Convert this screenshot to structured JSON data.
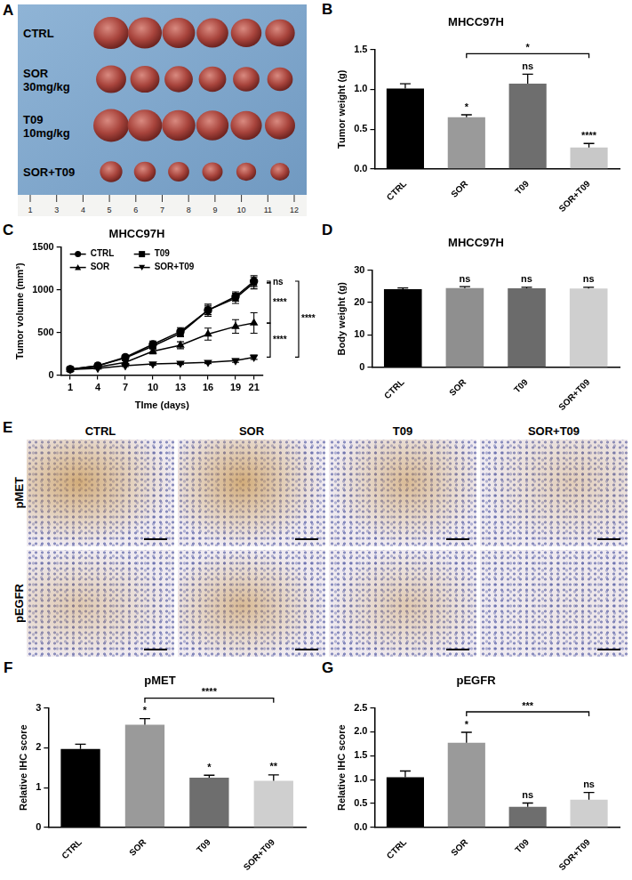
{
  "chart_data": [
    {
      "panel": "B",
      "type": "bar",
      "title": "MHCC97H",
      "ylabel": "Tumor weight (g)",
      "categories": [
        "CTRL",
        "SOR",
        "T09",
        "SOR+T09"
      ],
      "values": [
        1.01,
        0.65,
        1.07,
        0.27
      ],
      "errors": [
        0.06,
        0.03,
        0.12,
        0.05
      ],
      "colors": [
        "#000000",
        "#9a9a9a",
        "#6e6e6e",
        "#c8c8c8"
      ],
      "ylim": [
        0,
        1.5
      ],
      "yticks": [
        {
          "value": 0,
          "label": "0.0"
        },
        {
          "value": 0.5,
          "label": "0.5"
        },
        {
          "value": 1,
          "label": "1.0"
        },
        {
          "value": 1.5,
          "label": "1.5"
        }
      ],
      "grid": false,
      "annotations": [
        {
          "category": "SOR",
          "text": "*"
        },
        {
          "category": "T09",
          "text": "ns"
        },
        {
          "category": "SOR+T09",
          "text": "****"
        }
      ],
      "brackets": [
        {
          "from": "SOR",
          "to": "SOR+T09",
          "text": "*"
        }
      ]
    },
    {
      "panel": "C",
      "type": "line",
      "title": "MHCC97H",
      "xlabel": "TIme (days)",
      "ylabel": "Tumor volume (mm³)",
      "x": [
        1,
        4,
        7,
        10,
        13,
        16,
        19,
        21
      ],
      "xlim": [
        0,
        22
      ],
      "xticks": [
        1,
        4,
        7,
        10,
        13,
        16,
        19,
        21
      ],
      "ylim": [
        0,
        1500
      ],
      "yticks": [
        0,
        500,
        1000,
        1500
      ],
      "grid": false,
      "legend": "upper left",
      "series": [
        {
          "name": "CTRL",
          "color": "#000000",
          "marker": "circle",
          "values": [
            70,
            110,
            210,
            360,
            510,
            760,
            920,
            1100
          ],
          "errors": [
            5,
            8,
            15,
            40,
            45,
            70,
            55,
            65
          ]
        },
        {
          "name": "T09",
          "color": "#000000",
          "marker": "square",
          "values": [
            70,
            110,
            200,
            340,
            490,
            760,
            900,
            1080
          ],
          "errors": [
            5,
            8,
            15,
            30,
            40,
            50,
            60,
            70
          ]
        },
        {
          "name": "SOR",
          "color": "#000000",
          "marker": "triangle",
          "values": [
            65,
            95,
            150,
            280,
            350,
            480,
            570,
            610
          ],
          "errors": [
            5,
            8,
            20,
            30,
            40,
            70,
            80,
            120
          ]
        },
        {
          "name": "SOR+T09",
          "color": "#000000",
          "marker": "triangle-down",
          "values": [
            65,
            80,
            110,
            130,
            140,
            150,
            170,
            210
          ],
          "errors": [
            5,
            5,
            10,
            15,
            15,
            15,
            20,
            25
          ]
        }
      ],
      "brackets": [
        {
          "from": "CTRL",
          "to": "T09",
          "text": "ns"
        },
        {
          "from": "T09",
          "to": "SOR",
          "text": "****"
        },
        {
          "from": "SOR",
          "to": "SOR+T09",
          "text": "****"
        },
        {
          "from": "CTRL",
          "to": "SOR+T09",
          "text": "****"
        }
      ]
    },
    {
      "panel": "D",
      "type": "bar",
      "title": "MHCC97H",
      "ylabel": "Body weight (g)",
      "categories": [
        "CTRL",
        "SOR",
        "T09",
        "SOR+T09"
      ],
      "values": [
        24.1,
        24.5,
        24.4,
        24.3
      ],
      "errors": [
        0.4,
        0.4,
        0.3,
        0.4
      ],
      "colors": [
        "#000000",
        "#8f8f8f",
        "#6b6b6b",
        "#cfcfcf"
      ],
      "ylim": [
        0,
        30
      ],
      "yticks": [
        0,
        10,
        20,
        30
      ],
      "grid": false,
      "annotations": [
        {
          "category": "SOR",
          "text": "ns"
        },
        {
          "category": "T09",
          "text": "ns"
        },
        {
          "category": "SOR+T09",
          "text": "ns"
        }
      ],
      "brackets": []
    },
    {
      "panel": "F",
      "type": "bar",
      "title": "pMET",
      "ylabel": "Relative IHC score",
      "categories": [
        "CTRL",
        "SOR",
        "T09",
        "SOR+T09"
      ],
      "values": [
        1.97,
        2.58,
        1.25,
        1.17
      ],
      "errors": [
        0.12,
        0.15,
        0.06,
        0.15
      ],
      "colors": [
        "#000000",
        "#9a9a9a",
        "#6e6e6e",
        "#cfcfcf"
      ],
      "ylim": [
        0,
        3
      ],
      "yticks": [
        0,
        1,
        2,
        3
      ],
      "grid": false,
      "annotations": [
        {
          "category": "SOR",
          "text": "*"
        },
        {
          "category": "T09",
          "text": "*"
        },
        {
          "category": "SOR+T09",
          "text": "**"
        }
      ],
      "brackets": [
        {
          "from": "SOR",
          "to": "SOR+T09",
          "text": "****"
        }
      ]
    },
    {
      "panel": "G",
      "type": "bar",
      "title": "pEGFR",
      "ylabel": "Relative IHC score",
      "categories": [
        "CTRL",
        "SOR",
        "T09",
        "SOR+T09"
      ],
      "values": [
        1.05,
        1.77,
        0.43,
        0.58
      ],
      "errors": [
        0.13,
        0.22,
        0.08,
        0.15
      ],
      "colors": [
        "#000000",
        "#9a9a9a",
        "#6e6e6e",
        "#cfcfcf"
      ],
      "ylim": [
        0,
        2.5
      ],
      "yticks": [
        {
          "value": 0,
          "label": "0.0"
        },
        {
          "value": 0.5,
          "label": "0.5"
        },
        {
          "value": 1,
          "label": "1.0"
        },
        {
          "value": 1.5,
          "label": "1.5"
        },
        {
          "value": 2,
          "label": "2.0"
        },
        {
          "value": 2.5,
          "label": "2.5"
        }
      ],
      "grid": false,
      "annotations": [
        {
          "category": "SOR",
          "text": "*"
        },
        {
          "category": "T09",
          "text": "ns"
        },
        {
          "category": "SOR+T09",
          "text": "ns"
        }
      ],
      "brackets": [
        {
          "from": "SOR",
          "to": "SOR+T09",
          "text": "***"
        }
      ]
    }
  ],
  "photo_panels": [
    {
      "panel": "A",
      "rows": [
        [
          "CTRL"
        ],
        [
          "SOR",
          "30mg/kg"
        ],
        [
          "T09",
          "10mg/kg"
        ],
        [
          "SOR+T09"
        ]
      ],
      "tumors_per_row": 6,
      "ruler": [
        "1",
        "3",
        "4",
        "5",
        "6",
        "7",
        "8",
        "9",
        "10",
        "11",
        "12"
      ]
    },
    {
      "panel": "E",
      "columns": [
        "CTRL",
        "SOR",
        "T09",
        "SOR+T09"
      ],
      "rows": [
        "pMET",
        "pEGFR"
      ]
    }
  ]
}
